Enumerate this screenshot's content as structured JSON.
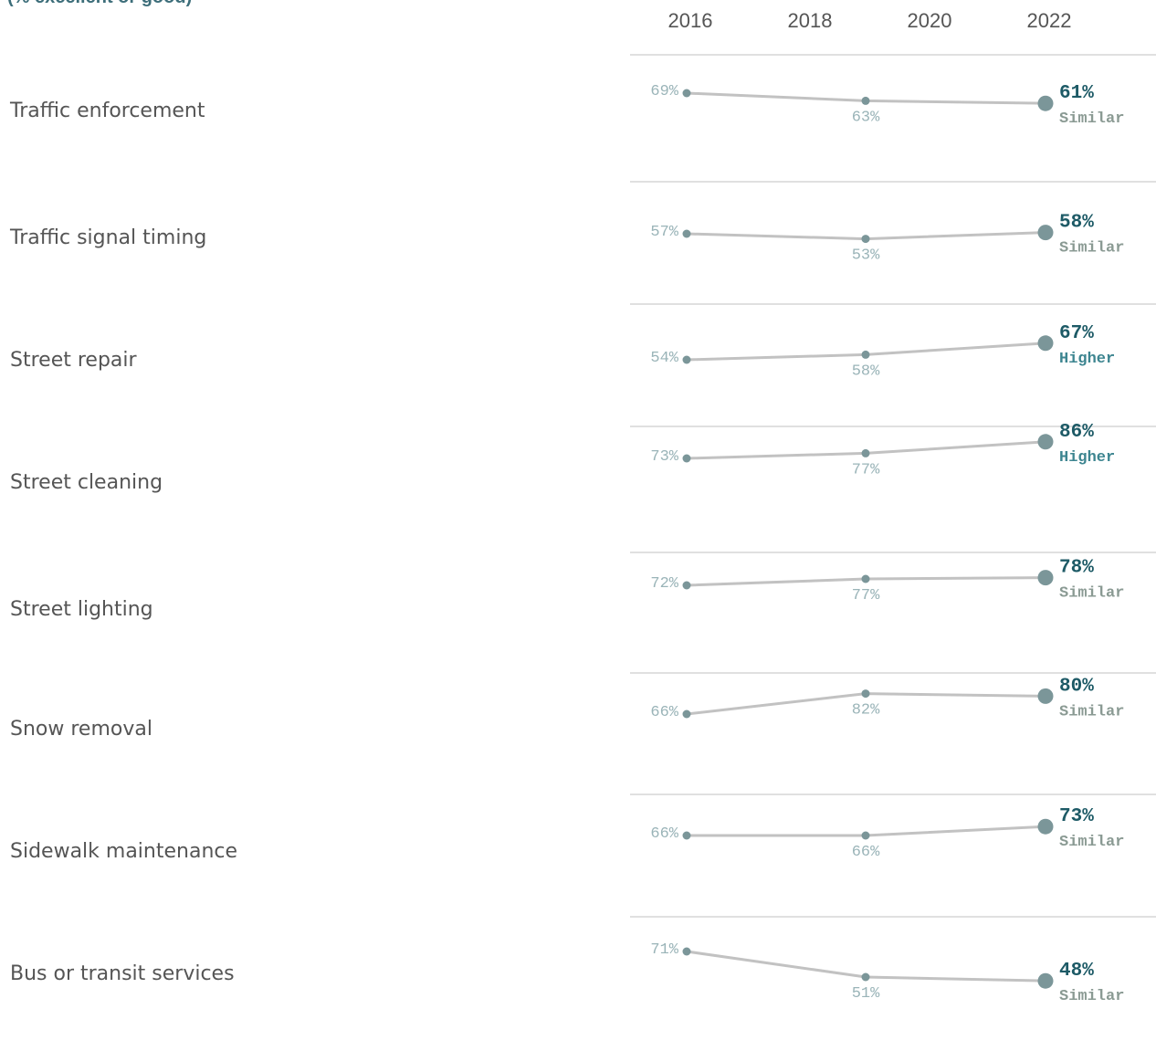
{
  "subtitle": "(% excellent or good)",
  "chart_data": {
    "type": "line",
    "x": [
      "2016",
      "2019",
      "2022"
    ],
    "tick_labels": [
      "2016",
      "2018",
      "2020",
      "2022"
    ],
    "ylabel_unit": "%",
    "rows": [
      {
        "name": "Traffic enforcement",
        "values": [
          69,
          63,
          61
        ],
        "status": "Similar"
      },
      {
        "name": "Traffic signal timing",
        "values": [
          57,
          53,
          58
        ],
        "status": "Similar"
      },
      {
        "name": "Street repair",
        "values": [
          54,
          58,
          67
        ],
        "status": "Higher"
      },
      {
        "name": "Street cleaning",
        "values": [
          73,
          77,
          86
        ],
        "status": "Higher"
      },
      {
        "name": "Street lighting",
        "values": [
          72,
          77,
          78
        ],
        "status": "Similar"
      },
      {
        "name": "Snow removal",
        "values": [
          66,
          82,
          80
        ],
        "status": "Similar"
      },
      {
        "name": "Sidewalk maintenance",
        "values": [
          66,
          66,
          73
        ],
        "status": "Similar"
      },
      {
        "name": "Bus or transit services",
        "values": [
          71,
          51,
          48
        ],
        "status": "Similar"
      }
    ],
    "colors": {
      "line": "#c2c2c2",
      "marker": "#7b9699",
      "label": "#9ab4b8",
      "final": "#1d5a66",
      "similar": "#8a9a93",
      "higher": "#3d8590",
      "divider": "#d6d6d6"
    }
  }
}
